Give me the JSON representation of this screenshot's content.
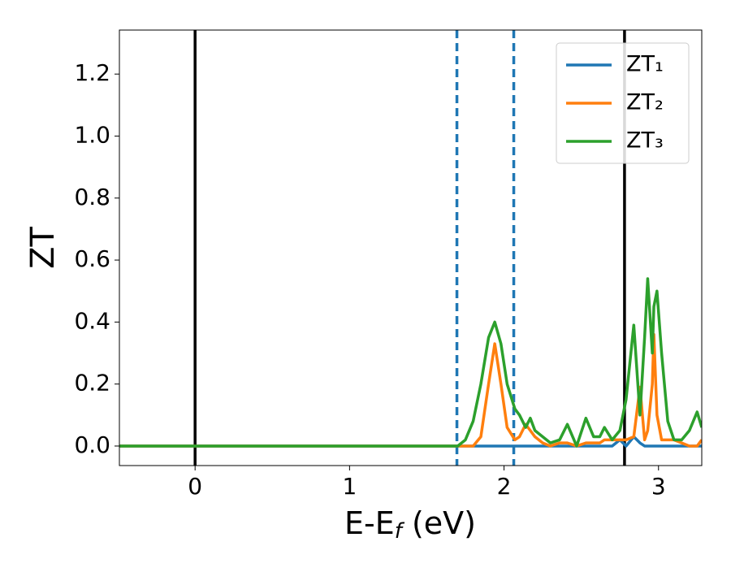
{
  "chart_data": {
    "type": "line",
    "x_label": [
      "E-E",
      "f",
      " (eV)"
    ],
    "y_label": "ZT",
    "x": [
      -0.49,
      1.6,
      1.7,
      1.75,
      1.8,
      1.85,
      1.9,
      1.94,
      1.98,
      2.02,
      2.07,
      2.1,
      2.14,
      2.17,
      2.2,
      2.25,
      2.3,
      2.36,
      2.41,
      2.47,
      2.53,
      2.58,
      2.62,
      2.65,
      2.7,
      2.75,
      2.79,
      2.84,
      2.88,
      2.91,
      2.93,
      2.96,
      2.97,
      2.99,
      3.02,
      3.06,
      3.1,
      3.15,
      3.2,
      3.25,
      3.28
    ],
    "series": [
      {
        "name": "ZT₁",
        "color": "#1f77b4",
        "values": [
          0,
          0,
          0,
          0,
          0,
          0,
          0,
          0,
          0,
          0,
          0,
          0,
          0,
          0,
          0,
          0,
          0,
          0,
          0,
          0,
          0,
          0,
          0,
          0,
          0,
          0.02,
          0,
          0.03,
          0.01,
          0,
          0,
          0,
          0,
          0,
          0,
          0,
          0,
          0,
          0,
          0,
          0
        ]
      },
      {
        "name": "ZT₂",
        "color": "#ff7f0e",
        "values": [
          0,
          0,
          0,
          0,
          0,
          0.03,
          0.2,
          0.33,
          0.2,
          0.06,
          0.02,
          0.03,
          0.07,
          0.05,
          0.03,
          0.01,
          0,
          0.01,
          0.01,
          0,
          0.01,
          0.01,
          0.01,
          0.02,
          0.02,
          0.02,
          0.02,
          0.03,
          0.19,
          0.02,
          0.05,
          0.2,
          0.36,
          0.1,
          0.02,
          0.02,
          0.02,
          0.01,
          0,
          0,
          0.02
        ]
      },
      {
        "name": "ZT₃",
        "color": "#2ca02c",
        "values": [
          0,
          0,
          0,
          0.02,
          0.08,
          0.2,
          0.35,
          0.4,
          0.33,
          0.2,
          0.12,
          0.1,
          0.06,
          0.09,
          0.05,
          0.03,
          0.01,
          0.02,
          0.07,
          0,
          0.09,
          0.03,
          0.03,
          0.06,
          0.02,
          0.05,
          0.15,
          0.39,
          0.1,
          0.35,
          0.54,
          0.3,
          0.45,
          0.5,
          0.3,
          0.08,
          0.02,
          0.02,
          0.05,
          0.11,
          0.06
        ]
      }
    ],
    "vlines": [
      {
        "x": 0,
        "color": "#000000",
        "dashed": false
      },
      {
        "x": 2.78,
        "color": "#000000",
        "dashed": false
      },
      {
        "x": 1.695,
        "color": "#1f77b4",
        "dashed": true
      },
      {
        "x": 2.063,
        "color": "#1f77b4",
        "dashed": true
      }
    ],
    "xlim": [
      -0.49,
      3.28
    ],
    "ylim": [
      -0.063,
      1.342
    ],
    "xticks": [
      0,
      1,
      2,
      3
    ],
    "yticks": [
      {
        "value": 0,
        "label": "0.0"
      },
      0.2,
      0.4,
      0.6,
      0.8,
      {
        "value": 1,
        "label": "1.0"
      },
      1.2
    ],
    "legend": "upper right"
  }
}
